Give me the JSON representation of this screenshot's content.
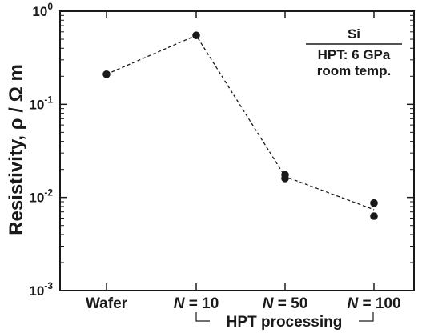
{
  "chart_data": {
    "type": "line",
    "yscale": "log",
    "ylim": [
      0.001,
      1
    ],
    "ylabel": "Resistivity, ρ / Ω m",
    "y_ticks": [
      {
        "value": 0.001,
        "base": "10",
        "exp": "-3"
      },
      {
        "value": 0.01,
        "base": "10",
        "exp": "-2"
      },
      {
        "value": 0.1,
        "base": "10",
        "exp": "-1"
      },
      {
        "value": 1,
        "base": "10",
        "exp": "0"
      }
    ],
    "categories": [
      {
        "prefix": "",
        "main": "Wafer"
      },
      {
        "prefix": "N",
        "main": " = 10"
      },
      {
        "prefix": "N",
        "main": " = 50"
      },
      {
        "prefix": "N",
        "main": " = 100"
      }
    ],
    "group_label": "HPT processing",
    "points": [
      {
        "category_index": 0,
        "value": 0.21
      },
      {
        "category_index": 1,
        "value": 0.55
      },
      {
        "category_index": 2,
        "value": 0.0175
      },
      {
        "category_index": 2,
        "value": 0.016
      },
      {
        "category_index": 3,
        "value": 0.0087
      },
      {
        "category_index": 3,
        "value": 0.0063
      }
    ],
    "trend": [
      {
        "category_index": 0,
        "value": 0.21
      },
      {
        "category_index": 1,
        "value": 0.55
      },
      {
        "category_index": 2,
        "value": 0.0168
      },
      {
        "category_index": 3,
        "value": 0.0074
      }
    ],
    "annotation": {
      "material": "Si",
      "line1": "HPT: 6 GPa",
      "line2": "room temp."
    }
  }
}
